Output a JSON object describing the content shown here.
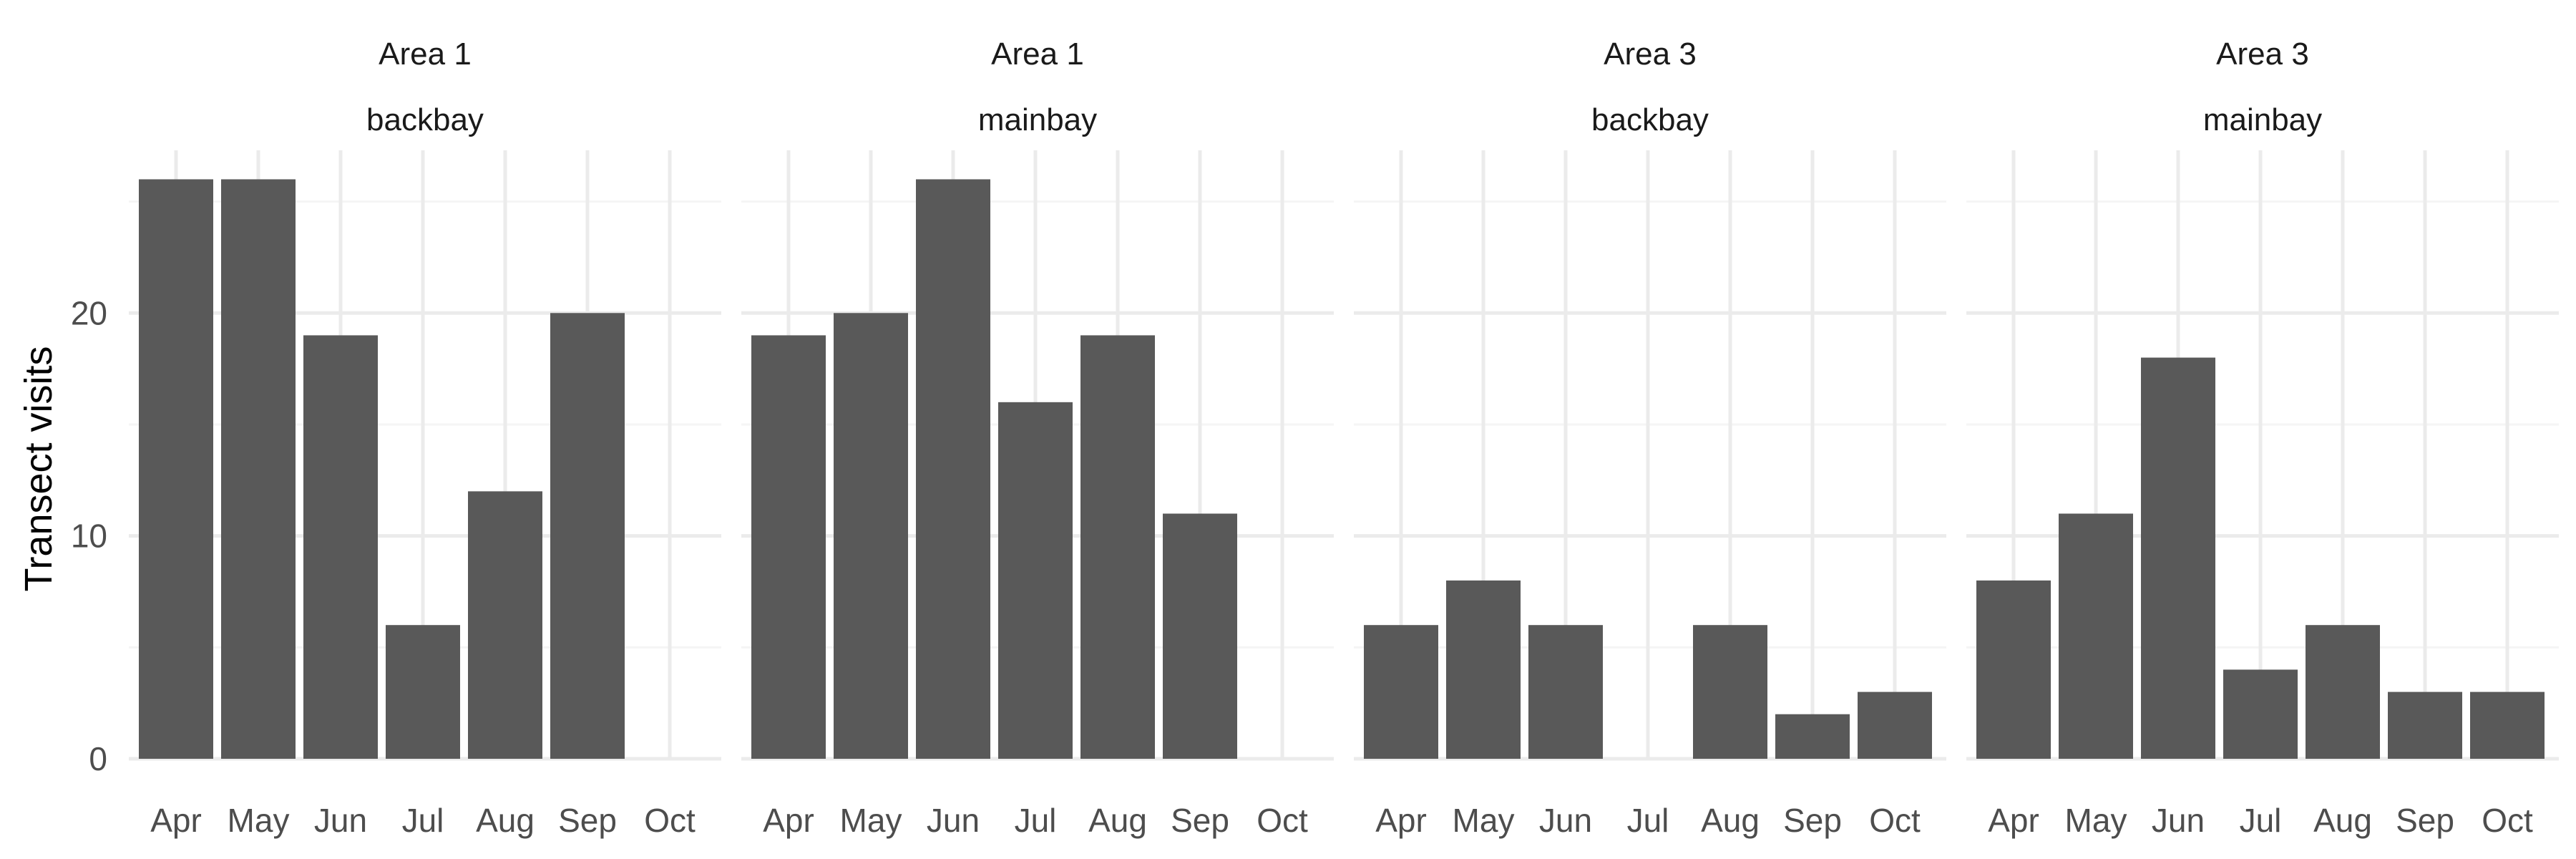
{
  "chart_data": {
    "type": "bar",
    "ylabel": "Transect visits",
    "ylim": [
      0,
      27.3
    ],
    "yticks": [
      0,
      10,
      20
    ],
    "categories": [
      "Apr",
      "May",
      "Jun",
      "Jul",
      "Aug",
      "Sep",
      "Oct"
    ],
    "bar_color": "#595959",
    "grid_major_color": "#ebebeb",
    "grid_minor_color": "#f5f5f5",
    "grid": true,
    "panels": [
      {
        "strip_top": "Area 1",
        "strip_bottom": "backbay",
        "values": [
          26,
          26,
          19,
          6,
          12,
          20,
          0
        ]
      },
      {
        "strip_top": "Area 1",
        "strip_bottom": "mainbay",
        "values": [
          19,
          20,
          26,
          16,
          19,
          11,
          0
        ]
      },
      {
        "strip_top": "Area 3",
        "strip_bottom": "backbay",
        "values": [
          6,
          8,
          6,
          0,
          6,
          2,
          3
        ]
      },
      {
        "strip_top": "Area 3",
        "strip_bottom": "mainbay",
        "values": [
          8,
          11,
          18,
          4,
          6,
          3,
          3
        ]
      }
    ]
  }
}
